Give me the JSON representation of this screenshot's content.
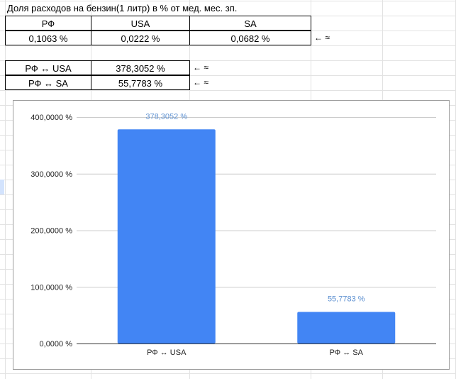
{
  "sheet": {
    "title": "Доля расходов на бензин(1 литр) в % от мед. мес. зп.",
    "headers": [
      "РФ",
      "USA",
      "SA"
    ],
    "values": [
      "0,1063 %",
      "0,0222 %",
      "0,0682 %"
    ],
    "values_note": "← ≈",
    "comparisons": [
      {
        "label": "РФ ↔ USA",
        "value": "378,3052 %",
        "note": "← ≈"
      },
      {
        "label": "РФ ↔ SA",
        "value": "55,7783 %",
        "note": "← ≈"
      }
    ]
  },
  "colors": {
    "bar": "#4285f4",
    "data_label": "#5b8fd0",
    "gridline": "#cccccc"
  },
  "chart_data": {
    "type": "bar",
    "title": "",
    "xlabel": "",
    "ylabel": "",
    "categories": [
      "РФ ↔ USA",
      "РФ ↔ SA"
    ],
    "values": [
      378.3052,
      55.7783
    ],
    "data_labels": [
      "378,3052 %",
      "55,7783 %"
    ],
    "ylim": [
      0,
      400
    ],
    "yticks": [
      0,
      100,
      200,
      300,
      400
    ],
    "ytick_labels": [
      "0,0000 %",
      "100,0000 %",
      "200,0000 %",
      "300,0000 %",
      "400,0000 %"
    ],
    "grid": true,
    "legend": "none"
  }
}
